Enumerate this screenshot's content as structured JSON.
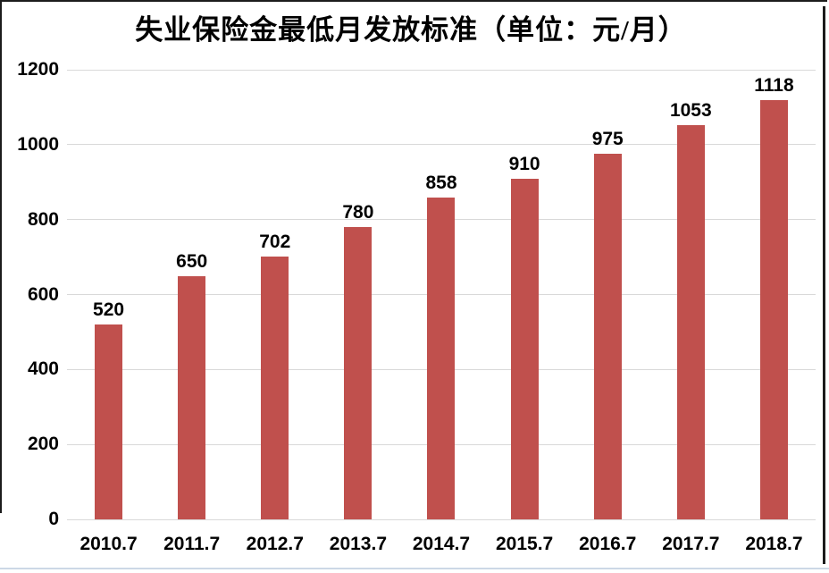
{
  "colors": {
    "bar": "#c0504d",
    "gridline": "#d9d9d9",
    "axis_text": "#000000",
    "title_text": "#000000",
    "frame_dark": "#1c1c1c",
    "bottom_rule": "#ccd8e6"
  },
  "chart_data": {
    "type": "bar",
    "title": "失业保险金最低月发放标准（单位：元/月）",
    "categories": [
      "2010.7",
      "2011.7",
      "2012.7",
      "2013.7",
      "2014.7",
      "2015.7",
      "2016.7",
      "2017.7",
      "2018.7"
    ],
    "values": [
      520,
      650,
      702,
      780,
      858,
      910,
      975,
      1053,
      1118
    ],
    "data_labels": [
      "520",
      "650",
      "702",
      "780",
      "858",
      "910",
      "975",
      "1053",
      "1118"
    ],
    "xlabel": "",
    "ylabel": "",
    "ylim": [
      0,
      1200
    ],
    "yticks": [
      0,
      200,
      400,
      600,
      800,
      1000,
      1200
    ],
    "grid": "horizontal-only",
    "legend": "none",
    "bar_color": "#c0504d",
    "data_labels_position": "above-bar"
  }
}
